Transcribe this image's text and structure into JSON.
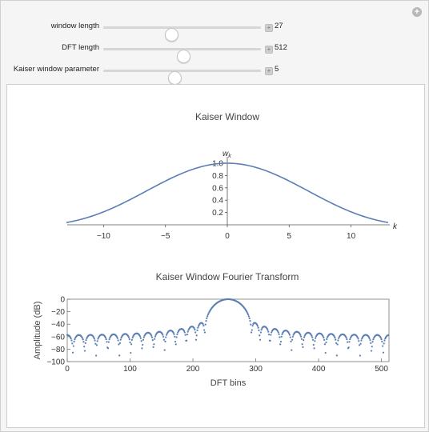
{
  "controls": [
    {
      "label": "window length",
      "value": "27",
      "fraction": 0.43
    },
    {
      "label": "DFT length",
      "value": "512",
      "fraction": 0.51
    },
    {
      "label": "Kaiser window parameter",
      "value": "5",
      "fraction": 0.45
    }
  ],
  "colors": {
    "series": "#5b7fb5",
    "axis": "#555555",
    "title": "#444444"
  },
  "chart_data": [
    {
      "type": "line",
      "title": "Kaiser Window",
      "xlabel": "k",
      "ylabel": "w_k",
      "ylabel_main": "w",
      "ylabel_sub": "k",
      "xlim": [
        -13,
        13
      ],
      "ylim": [
        0,
        1.0
      ],
      "xticks": [
        -10,
        -5,
        0,
        5,
        10
      ],
      "xtick_labels": [
        "−10",
        "−5",
        "0",
        "5",
        "10"
      ],
      "yticks": [
        0.2,
        0.4,
        0.6,
        0.8,
        1.0
      ],
      "ytick_labels": [
        "0.2",
        "0.4",
        "0.6",
        "0.8",
        "1.0"
      ],
      "beta": 5,
      "series": [
        {
          "x_range": [
            -13,
            13
          ]
        }
      ]
    },
    {
      "type": "scatter",
      "title": "Kaiser Window Fourier Transform",
      "xlabel": "DFT bins",
      "ylabel": "Amplitude (dB)",
      "xlim": [
        0,
        512
      ],
      "ylim": [
        -100,
        0
      ],
      "xticks": [
        0,
        100,
        200,
        300,
        400,
        500
      ],
      "xtick_labels": [
        "0",
        "100",
        "200",
        "300",
        "400",
        "500"
      ],
      "yticks": [
        0,
        -20,
        -40,
        -60,
        -80,
        -100
      ],
      "ytick_labels": [
        "0",
        "−20",
        "−40",
        "−60",
        "−80",
        "−100"
      ],
      "window_length": 27,
      "dft_length": 512,
      "beta": 5
    }
  ]
}
